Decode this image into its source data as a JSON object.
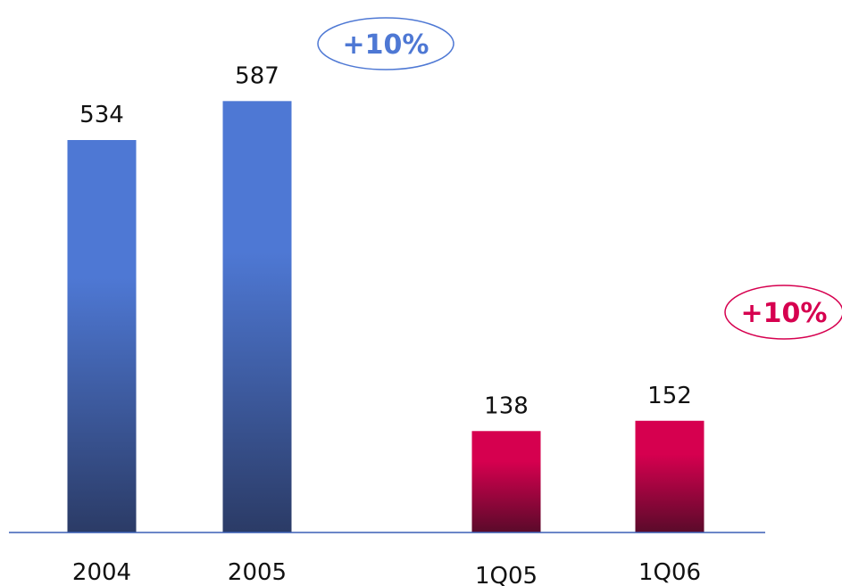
{
  "chart_data": {
    "type": "bar",
    "categories": [
      "2004",
      "2005",
      "1Q05",
      "1Q06"
    ],
    "values": [
      534,
      587,
      138,
      152
    ],
    "groups": [
      {
        "categories": [
          "2004",
          "2005"
        ],
        "growth": "+10%",
        "color": "#4e78d4",
        "color_dark": "#2b3b66"
      },
      {
        "categories": [
          "1Q05",
          "1Q06"
        ],
        "growth": "+10%",
        "color": "#d6004f",
        "color_dark": "#5a0a2a"
      }
    ],
    "axis_color": "#3a5fb5",
    "grid": false
  }
}
